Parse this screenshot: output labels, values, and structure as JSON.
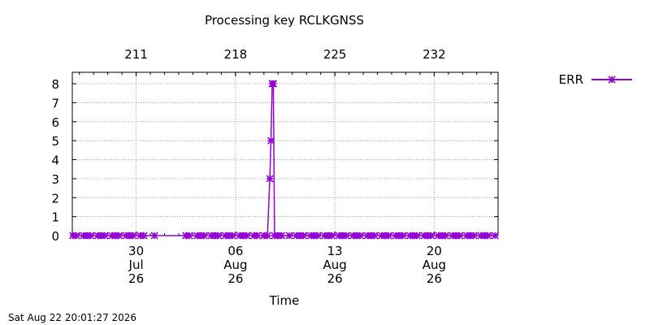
{
  "chart_data": {
    "type": "line",
    "title": "Processing key RCLKGNSS",
    "xlabel": "Time",
    "ylabel": "",
    "footer_timestamp": "Sat Aug 22 20:01:27 2026",
    "grid": true,
    "legend_position": "top-right",
    "x_range": [
      "2026-07-25T12:00",
      "2026-08-24T12:00"
    ],
    "ylim": [
      0,
      8.6
    ],
    "y_ticks": [
      0,
      1,
      2,
      3,
      4,
      5,
      6,
      7,
      8
    ],
    "x_ticks_bottom": [
      {
        "date": "2026-07-30",
        "label": [
          "30",
          "Jul",
          "26"
        ]
      },
      {
        "date": "2026-08-06",
        "label": [
          "06",
          "Aug",
          "26"
        ]
      },
      {
        "date": "2026-08-13",
        "label": [
          "13",
          "Aug",
          "26"
        ]
      },
      {
        "date": "2026-08-20",
        "label": [
          "20",
          "Aug",
          "26"
        ]
      }
    ],
    "x_ticks_top": [
      {
        "date": "2026-07-30",
        "label": "211"
      },
      {
        "date": "2026-08-06",
        "label": "218"
      },
      {
        "date": "2026-08-13",
        "label": "225"
      },
      {
        "date": "2026-08-20",
        "label": "232"
      }
    ],
    "series": [
      {
        "name": "ERR",
        "color": "#9400d3",
        "marker": "x-star",
        "points": [
          [
            "2026-07-25T13:00",
            0
          ],
          [
            "2026-07-25T19:00",
            0
          ],
          [
            "2026-07-26T07:00",
            0
          ],
          [
            "2026-07-26T13:00",
            0
          ],
          [
            "2026-07-26T19:00",
            0
          ],
          [
            "2026-07-27T07:00",
            0
          ],
          [
            "2026-07-27T13:00",
            0
          ],
          [
            "2026-07-27T19:00",
            0
          ],
          [
            "2026-07-28T07:00",
            0
          ],
          [
            "2026-07-28T13:00",
            0
          ],
          [
            "2026-07-28T19:00",
            0
          ],
          [
            "2026-07-29T07:00",
            0
          ],
          [
            "2026-07-29T13:00",
            0
          ],
          [
            "2026-07-29T19:00",
            0
          ],
          [
            "2026-07-30T07:00",
            0
          ],
          [
            "2026-07-30T13:00",
            0
          ],
          [
            "2026-07-31T07:00",
            0
          ],
          [
            "2026-08-02T12:00",
            0
          ],
          [
            "2026-08-02T18:00",
            0
          ],
          [
            "2026-08-03T07:00",
            0
          ],
          [
            "2026-08-03T13:00",
            0
          ],
          [
            "2026-08-03T19:00",
            0
          ],
          [
            "2026-08-04T07:00",
            0
          ],
          [
            "2026-08-04T13:00",
            0
          ],
          [
            "2026-08-04T19:00",
            0
          ],
          [
            "2026-08-05T07:00",
            0
          ],
          [
            "2026-08-05T13:00",
            0
          ],
          [
            "2026-08-05T19:00",
            0
          ],
          [
            "2026-08-06T07:00",
            0
          ],
          [
            "2026-08-06T13:00",
            0
          ],
          [
            "2026-08-06T19:00",
            0
          ],
          [
            "2026-08-07T07:00",
            0
          ],
          [
            "2026-08-07T13:00",
            0
          ],
          [
            "2026-08-08T00:00",
            0
          ],
          [
            "2026-08-08T06:00",
            0
          ],
          [
            "2026-08-08T10:00",
            3
          ],
          [
            "2026-08-08T12:00",
            5
          ],
          [
            "2026-08-08T14:00",
            8
          ],
          [
            "2026-08-08T16:00",
            8
          ],
          [
            "2026-08-08T18:00",
            0
          ],
          [
            "2026-08-09T00:00",
            0
          ],
          [
            "2026-08-09T06:00",
            0
          ],
          [
            "2026-08-09T19:00",
            0
          ],
          [
            "2026-08-10T07:00",
            0
          ],
          [
            "2026-08-10T13:00",
            0
          ],
          [
            "2026-08-10T19:00",
            0
          ],
          [
            "2026-08-11T07:00",
            0
          ],
          [
            "2026-08-11T13:00",
            0
          ],
          [
            "2026-08-11T19:00",
            0
          ],
          [
            "2026-08-12T07:00",
            0
          ],
          [
            "2026-08-12T13:00",
            0
          ],
          [
            "2026-08-12T19:00",
            0
          ],
          [
            "2026-08-13T07:00",
            0
          ],
          [
            "2026-08-13T13:00",
            0
          ],
          [
            "2026-08-13T19:00",
            0
          ],
          [
            "2026-08-14T07:00",
            0
          ],
          [
            "2026-08-14T13:00",
            0
          ],
          [
            "2026-08-14T19:00",
            0
          ],
          [
            "2026-08-15T07:00",
            0
          ],
          [
            "2026-08-15T13:00",
            0
          ],
          [
            "2026-08-15T19:00",
            0
          ],
          [
            "2026-08-16T07:00",
            0
          ],
          [
            "2026-08-16T13:00",
            0
          ],
          [
            "2026-08-16T19:00",
            0
          ],
          [
            "2026-08-17T07:00",
            0
          ],
          [
            "2026-08-17T13:00",
            0
          ],
          [
            "2026-08-17T19:00",
            0
          ],
          [
            "2026-08-18T07:00",
            0
          ],
          [
            "2026-08-18T13:00",
            0
          ],
          [
            "2026-08-18T19:00",
            0
          ],
          [
            "2026-08-19T07:00",
            0
          ],
          [
            "2026-08-19T13:00",
            0
          ],
          [
            "2026-08-19T19:00",
            0
          ],
          [
            "2026-08-20T07:00",
            0
          ],
          [
            "2026-08-20T13:00",
            0
          ],
          [
            "2026-08-20T19:00",
            0
          ],
          [
            "2026-08-21T07:00",
            0
          ],
          [
            "2026-08-21T13:00",
            0
          ],
          [
            "2026-08-21T19:00",
            0
          ],
          [
            "2026-08-22T07:00",
            0
          ],
          [
            "2026-08-22T13:00",
            0
          ],
          [
            "2026-08-22T19:00",
            0
          ],
          [
            "2026-08-23T07:00",
            0
          ],
          [
            "2026-08-23T13:00",
            0
          ],
          [
            "2026-08-23T19:00",
            0
          ],
          [
            "2026-08-24T07:00",
            0
          ]
        ]
      }
    ]
  }
}
